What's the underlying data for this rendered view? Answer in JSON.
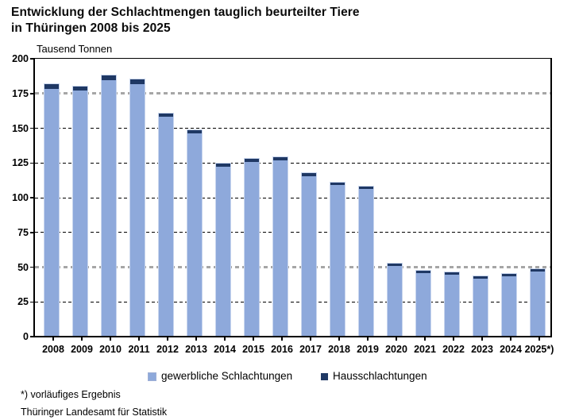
{
  "title": {
    "line1": "Entwicklung der Schlachtmengen tauglich beurteilter Tiere",
    "line2": "in Thüringen 2008 bis 2025"
  },
  "unit_label": "Tausend Tonnen",
  "colors": {
    "gewerblich": "#8EA9DB",
    "haus": "#1F3864",
    "grid_black": "#000000",
    "grid_gray": "#A6A6A6",
    "bar_border": "#C9D6EE"
  },
  "chart_data": {
    "type": "bar",
    "stacked": true,
    "title": "Entwicklung der Schlachtmengen tauglich beurteilter Tiere in Thüringen 2008 bis 2025",
    "ylabel": "Tausend Tonnen",
    "ylim": [
      0,
      200
    ],
    "yticks": [
      0,
      25,
      50,
      75,
      100,
      125,
      150,
      175,
      200
    ],
    "gray_gridlines": [
      50,
      175
    ],
    "grid": "horizontal dashed",
    "legend_position": "bottom",
    "categories": [
      "2008",
      "2009",
      "2010",
      "2011",
      "2012",
      "2013",
      "2014",
      "2015",
      "2016",
      "2017",
      "2018",
      "2019",
      "2020",
      "2021",
      "2022",
      "2023",
      "2024",
      "2025*)"
    ],
    "series": [
      {
        "name": "gewerbliche Schlachtungen",
        "color": "#8EA9DB",
        "values": [
          179,
          177.5,
          185,
          182,
          158.5,
          146.5,
          123,
          126.5,
          127.5,
          116,
          110,
          107,
          51.5,
          46.5,
          45.5,
          42.5,
          44,
          47.5
        ]
      },
      {
        "name": "Hausschlachtungen",
        "color": "#1F3864",
        "values": [
          3.5,
          3,
          3.5,
          3.5,
          2.5,
          2.5,
          2,
          2,
          2,
          2,
          1.5,
          1.5,
          1.5,
          1.5,
          1.5,
          1.5,
          1.5,
          1.5
        ]
      }
    ]
  },
  "legend": {
    "items": [
      {
        "label": "gewerbliche Schlachtungen"
      },
      {
        "label": "Hausschlachtungen"
      }
    ]
  },
  "footnote": "*) vorläufiges Ergebnis",
  "source": "Thüringer Landesamt für Statistik"
}
